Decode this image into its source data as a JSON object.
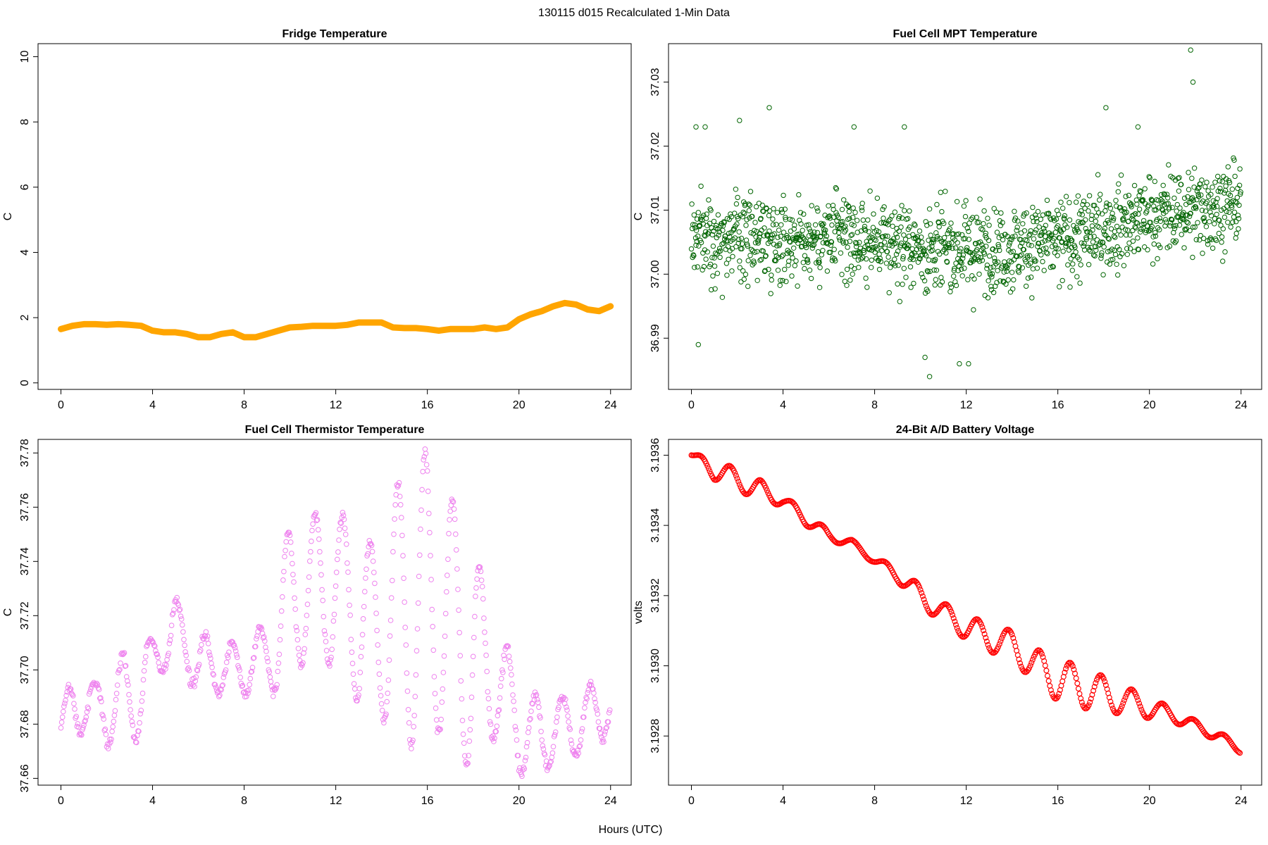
{
  "figure": {
    "title": "130115   d015   Recalculated 1-Min Data",
    "xlabel": "Hours (UTC)"
  },
  "chart_data": [
    {
      "id": "fridge",
      "type": "line",
      "title": "Fridge Temperature",
      "xlabel": "",
      "ylabel": "C",
      "xlim": [
        -1,
        24.9
      ],
      "ylim": [
        -0.2,
        10.4
      ],
      "xticks": [
        0,
        4,
        8,
        12,
        16,
        20,
        24
      ],
      "yticks": [
        0,
        2,
        4,
        6,
        8,
        10
      ],
      "ytick_labels": [
        "0",
        "2",
        "4",
        "6",
        "8",
        "10"
      ],
      "rotate_ytick_labels": true,
      "color": "#FFA500",
      "series": [
        {
          "style": "thick-line",
          "x": [
            0,
            0.5,
            1,
            1.5,
            2,
            2.5,
            3,
            3.5,
            4,
            4.5,
            5,
            5.5,
            6,
            6.5,
            7,
            7.5,
            8,
            8.5,
            9,
            9.5,
            10,
            10.5,
            11,
            11.5,
            12,
            12.5,
            13,
            13.5,
            14,
            14.5,
            15,
            15.5,
            16,
            16.5,
            17,
            17.5,
            18,
            18.5,
            19,
            19.5,
            20,
            20.5,
            21,
            21.5,
            22,
            22.5,
            23,
            23.5,
            24
          ],
          "y": [
            1.65,
            1.75,
            1.8,
            1.8,
            1.78,
            1.8,
            1.78,
            1.75,
            1.6,
            1.55,
            1.55,
            1.5,
            1.4,
            1.4,
            1.5,
            1.55,
            1.4,
            1.4,
            1.5,
            1.6,
            1.7,
            1.72,
            1.75,
            1.75,
            1.75,
            1.78,
            1.85,
            1.85,
            1.85,
            1.7,
            1.68,
            1.68,
            1.65,
            1.6,
            1.65,
            1.65,
            1.65,
            1.7,
            1.65,
            1.7,
            1.95,
            2.1,
            2.2,
            2.35,
            2.45,
            2.4,
            2.25,
            2.2,
            2.35
          ]
        }
      ]
    },
    {
      "id": "mpt",
      "type": "scatter",
      "title": "Fuel Cell MPT Temperature",
      "xlabel": "",
      "ylabel": "C",
      "xlim": [
        -1,
        24.9
      ],
      "ylim": [
        36.982,
        37.036
      ],
      "xticks": [
        0,
        4,
        8,
        12,
        16,
        20,
        24
      ],
      "yticks": [
        36.99,
        37.0,
        37.01,
        37.02,
        37.03
      ],
      "ytick_labels": [
        "36.99",
        "37.00",
        "37.01",
        "37.02",
        "37.03"
      ],
      "rotate_ytick_labels": true,
      "color": "#006400",
      "series": [
        {
          "style": "open-circles",
          "x": [
            0,
            0.5,
            1,
            1.5,
            2,
            2.5,
            3,
            3.5,
            4,
            4.5,
            5,
            5.5,
            6,
            6.5,
            7,
            7.5,
            8,
            8.5,
            9,
            9.5,
            10,
            10.5,
            11,
            11.5,
            12,
            12.5,
            13,
            13.5,
            14,
            14.5,
            15,
            15.5,
            16,
            16.5,
            17,
            17.5,
            18,
            18.5,
            19,
            19.5,
            20,
            20.5,
            21,
            21.5,
            22,
            22.5,
            23,
            23.5,
            24
          ],
          "y": [
            37.006,
            37.006,
            37.006,
            37.006,
            37.006,
            37.006,
            37.006,
            37.006,
            37.0055,
            37.0055,
            37.0055,
            37.0055,
            37.0055,
            37.0055,
            37.0055,
            37.005,
            37.005,
            37.005,
            37.005,
            37.0045,
            37.004,
            37.004,
            37.004,
            37.004,
            37.004,
            37.004,
            37.004,
            37.004,
            37.004,
            37.0045,
            37.005,
            37.005,
            37.005,
            37.0055,
            37.006,
            37.0065,
            37.007,
            37.0075,
            37.008,
            37.0085,
            37.009,
            37.0095,
            37.0095,
            37.01,
            37.01,
            37.0105,
            37.0105,
            37.011,
            37.011
          ],
          "spread": 0.0055,
          "outliers_x": [
            0.2,
            0.3,
            0.6,
            2.1,
            3.4,
            7.1,
            9.3,
            10.2,
            10.4,
            11.7,
            12.1,
            18.1,
            19.5,
            21.8,
            21.9
          ],
          "outliers_y": [
            37.023,
            36.989,
            37.023,
            37.024,
            37.026,
            37.023,
            37.023,
            36.987,
            36.984,
            36.986,
            36.986,
            37.026,
            37.023,
            37.035,
            37.03
          ]
        }
      ]
    },
    {
      "id": "thermistor",
      "type": "scatter",
      "title": "Fuel Cell Thermistor Temperature",
      "xlabel": "",
      "ylabel": "C",
      "xlim": [
        -1,
        24.9
      ],
      "ylim": [
        37.6575,
        37.785
      ],
      "xticks": [
        0,
        4,
        8,
        12,
        16,
        20,
        24
      ],
      "yticks": [
        37.66,
        37.68,
        37.7,
        37.72,
        37.74,
        37.76,
        37.78
      ],
      "ytick_labels": [
        "37.66",
        "37.68",
        "37.70",
        "37.72",
        "37.74",
        "37.76",
        "37.78"
      ],
      "rotate_ytick_labels": true,
      "color": "#EE82EE",
      "series": [
        {
          "style": "open-circles",
          "x": [
            0,
            0.5,
            1,
            1.5,
            2,
            2.5,
            3,
            3.5,
            4,
            4.5,
            5,
            5.5,
            6,
            6.5,
            7,
            7.5,
            8,
            8.5,
            9,
            9.5,
            10,
            10.5,
            11,
            11.5,
            12,
            12.5,
            13,
            13.5,
            14,
            14.5,
            15,
            15.5,
            16,
            16.5,
            17,
            17.5,
            18,
            18.5,
            19,
            19.5,
            20,
            20.5,
            21,
            21.5,
            22,
            22.5,
            23,
            23.5,
            24
          ],
          "y": [
            37.678,
            37.685,
            37.69,
            37.685,
            37.685,
            37.69,
            37.688,
            37.695,
            37.7,
            37.712,
            37.715,
            37.708,
            37.702,
            37.7,
            37.702,
            37.7,
            37.7,
            37.705,
            37.705,
            37.715,
            37.725,
            37.73,
            37.73,
            37.73,
            37.73,
            37.725,
            37.72,
            37.715,
            37.715,
            37.72,
            37.725,
            37.725,
            37.725,
            37.722,
            37.72,
            37.712,
            37.705,
            37.7,
            37.695,
            37.69,
            37.68,
            37.675,
            37.675,
            37.678,
            37.678,
            37.68,
            37.682,
            37.685,
            37.688
          ],
          "amp": [
            0.008,
            0.012,
            0.012,
            0.01,
            0.013,
            0.015,
            0.018,
            0.018,
            0.012,
            0.012,
            0.012,
            0.01,
            0.012,
            0.012,
            0.01,
            0.01,
            0.01,
            0.01,
            0.012,
            0.025,
            0.028,
            0.028,
            0.028,
            0.028,
            0.029,
            0.032,
            0.032,
            0.032,
            0.033,
            0.045,
            0.05,
            0.055,
            0.055,
            0.045,
            0.045,
            0.045,
            0.045,
            0.03,
            0.02,
            0.018,
            0.018,
            0.016,
            0.015,
            0.012,
            0.012,
            0.012,
            0.012,
            0.012,
            0.01
          ],
          "period_h": 1.2
        }
      ]
    },
    {
      "id": "battery",
      "type": "scatter",
      "title": "24-Bit A/D Battery Voltage",
      "xlabel": "",
      "ylabel": "volts",
      "xlim": [
        -1,
        24.9
      ],
      "ylim": [
        3.19266,
        3.193645
      ],
      "xticks": [
        0,
        4,
        8,
        12,
        16,
        20,
        24
      ],
      "yticks": [
        3.1928,
        3.193,
        3.1932,
        3.1934,
        3.1936
      ],
      "ytick_labels": [
        "3.1928",
        "3.1930",
        "3.1932",
        "3.1934",
        "3.1936"
      ],
      "rotate_ytick_labels": true,
      "color": "#FF0000",
      "series": [
        {
          "style": "open-circles-dense",
          "x": [
            0,
            1,
            2,
            3,
            4,
            5,
            6,
            7,
            8,
            9,
            10,
            11,
            12,
            13,
            14,
            15,
            16,
            17,
            18,
            19,
            20,
            21,
            22,
            23,
            24
          ],
          "y": [
            3.1936,
            3.19356,
            3.19353,
            3.1935,
            3.19347,
            3.19342,
            3.19337,
            3.19335,
            3.1933,
            3.19326,
            3.1932,
            3.19315,
            3.19311,
            3.19308,
            3.19306,
            3.193,
            3.19296,
            3.19294,
            3.19292,
            3.1929,
            3.19288,
            3.19286,
            3.19283,
            3.1928,
            3.19276
          ],
          "amp": [
            5e-06,
            3e-05,
            3e-05,
            3e-05,
            1.5e-05,
            2e-05,
            1.5e-05,
            1e-05,
            1e-05,
            2e-05,
            3e-05,
            3e-05,
            3.5e-05,
            4e-05,
            4e-05,
            5e-05,
            6e-05,
            6e-05,
            5e-05,
            4e-05,
            3e-05,
            2e-05,
            1.5e-05,
            1.5e-05,
            1e-05
          ],
          "period_h": 1.35
        }
      ]
    }
  ]
}
